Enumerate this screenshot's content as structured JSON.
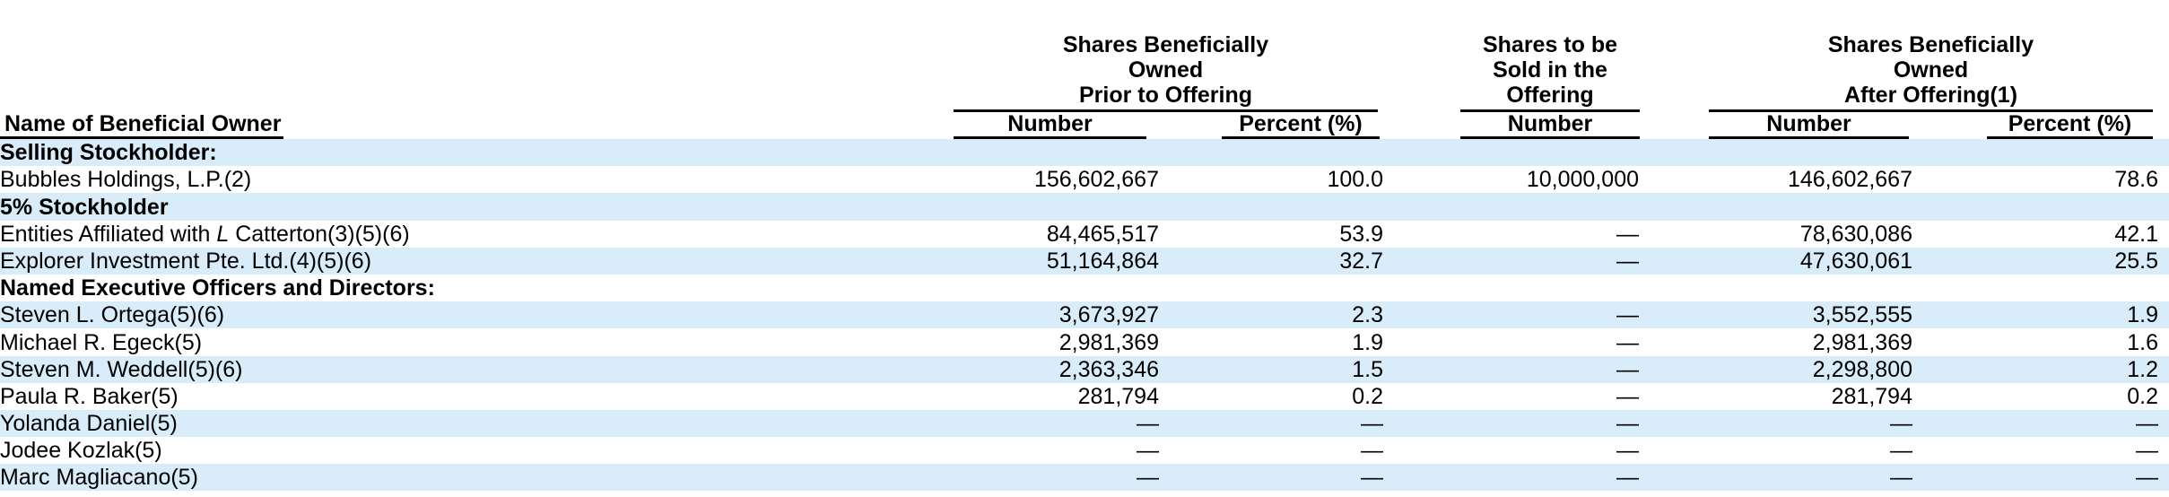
{
  "header": {
    "name_label": "Name of Beneficial Owner",
    "groups": [
      {
        "lines": [
          "Shares Beneficially",
          "Owned",
          "Prior to Offering"
        ],
        "subcolumns": [
          "Number",
          "Percent (%)"
        ]
      },
      {
        "lines": [
          "Shares to be",
          "Sold in the",
          "Offering"
        ],
        "subcolumns": [
          "Number"
        ]
      },
      {
        "lines": [
          "Shares Beneficially",
          "Owned",
          "After Offering(1)"
        ],
        "subcolumns": [
          "Number",
          "Percent (%)"
        ]
      }
    ]
  },
  "rows": [
    {
      "kind": "section",
      "shaded": true,
      "name": "Selling Stockholder:",
      "values": []
    },
    {
      "kind": "data",
      "shaded": false,
      "name": "Bubbles Holdings, L.P.(2)",
      "values": [
        "156,602,667",
        "100.0",
        "10,000,000",
        "146,602,667",
        "78.6"
      ]
    },
    {
      "kind": "section",
      "shaded": true,
      "name": "5% Stockholder",
      "values": []
    },
    {
      "kind": "data",
      "shaded": false,
      "name_parts": [
        {
          "text": "Entities Affiliated with ",
          "italic": false
        },
        {
          "text": "L",
          "italic": true
        },
        {
          "text": " Catterton(3)(5)(6)",
          "italic": false
        }
      ],
      "values": [
        "84,465,517",
        "53.9",
        "—",
        "78,630,086",
        "42.1"
      ]
    },
    {
      "kind": "data",
      "shaded": true,
      "name": "Explorer Investment Pte. Ltd.(4)(5)(6)",
      "values": [
        "51,164,864",
        "32.7",
        "—",
        "47,630,061",
        "25.5"
      ]
    },
    {
      "kind": "section",
      "shaded": false,
      "name": "Named Executive Officers and Directors:",
      "values": []
    },
    {
      "kind": "data",
      "shaded": true,
      "name": "Steven L. Ortega(5)(6)",
      "values": [
        "3,673,927",
        "2.3",
        "—",
        "3,552,555",
        "1.9"
      ]
    },
    {
      "kind": "data",
      "shaded": false,
      "name": "Michael R. Egeck(5)",
      "values": [
        "2,981,369",
        "1.9",
        "—",
        "2,981,369",
        "1.6"
      ]
    },
    {
      "kind": "data",
      "shaded": true,
      "name": "Steven M. Weddell(5)(6)",
      "values": [
        "2,363,346",
        "1.5",
        "—",
        "2,298,800",
        "1.2"
      ]
    },
    {
      "kind": "data",
      "shaded": false,
      "name": "Paula R. Baker(5)",
      "values": [
        "281,794",
        "0.2",
        "—",
        "281,794",
        "0.2"
      ]
    },
    {
      "kind": "data",
      "shaded": true,
      "name": "Yolanda Daniel(5)",
      "values": [
        "—",
        "—",
        "—",
        "—",
        "—"
      ]
    },
    {
      "kind": "data",
      "shaded": false,
      "name": "Jodee Kozlak(5)",
      "values": [
        "—",
        "—",
        "—",
        "—",
        "—"
      ]
    },
    {
      "kind": "data",
      "shaded": true,
      "name": "Marc Magliacano(5)",
      "values": [
        "—",
        "—",
        "—",
        "—",
        "—"
      ]
    }
  ],
  "colors": {
    "row_shade": "#d8ecf9",
    "rule": "#000000",
    "text": "#000000",
    "background": "#ffffff"
  }
}
